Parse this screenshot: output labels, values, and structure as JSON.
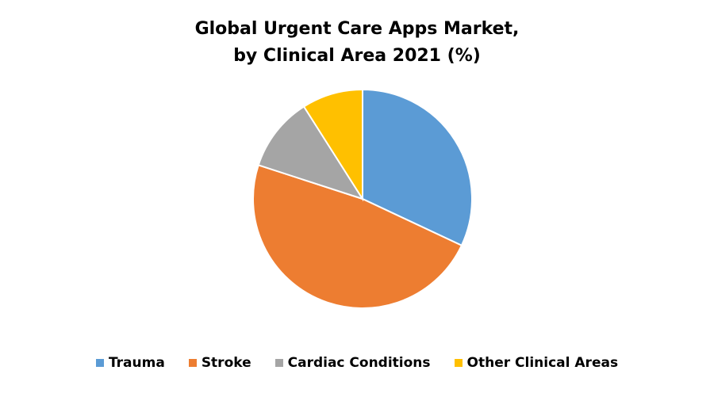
{
  "chart_data": {
    "type": "pie",
    "title": "Global Urgent Care Apps Market, by Clinical Area 2021 (%)",
    "categories": [
      "Trauma",
      "Stroke",
      "Cardiac Conditions",
      "Other Clinical Areas"
    ],
    "values": [
      32,
      48,
      11,
      9
    ],
    "colors": [
      "#5b9bd5",
      "#ed7d31",
      "#a5a5a5",
      "#ffc000"
    ],
    "legend": "bottom"
  }
}
